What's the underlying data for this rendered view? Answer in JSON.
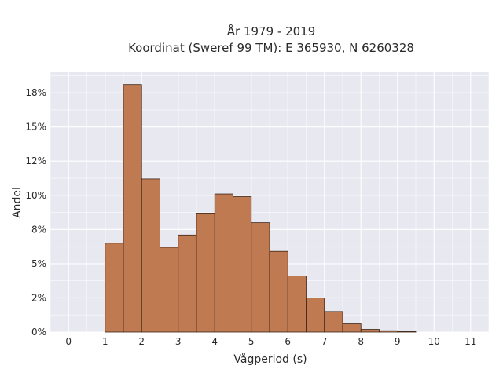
{
  "chart_data": {
    "type": "bar",
    "title_line1": "År 1979 - 2019",
    "title_line2": "Koordinat (Sweref 99 TM): E 365930, N 6260328",
    "xlabel": "Vågperiod (s)",
    "ylabel": "Andel",
    "xlim": [
      -0.5,
      11.5
    ],
    "ylim": [
      0,
      0.19
    ],
    "x_ticks": [
      "0",
      "1",
      "2",
      "3",
      "4",
      "5",
      "6",
      "7",
      "8",
      "9",
      "10",
      "11"
    ],
    "y_ticks": [
      {
        "value": 0.0,
        "label": "0%"
      },
      {
        "value": 0.025,
        "label": "2%"
      },
      {
        "value": 0.05,
        "label": "5%"
      },
      {
        "value": 0.075,
        "label": "8%"
      },
      {
        "value": 0.1,
        "label": "10%"
      },
      {
        "value": 0.125,
        "label": "12%"
      },
      {
        "value": 0.15,
        "label": "15%"
      },
      {
        "value": 0.175,
        "label": "18%"
      }
    ],
    "bin_width": 0.5,
    "bins": [
      {
        "start": 1.0,
        "value": 0.065
      },
      {
        "start": 1.5,
        "value": 0.181
      },
      {
        "start": 2.0,
        "value": 0.112
      },
      {
        "start": 2.5,
        "value": 0.062
      },
      {
        "start": 3.0,
        "value": 0.071
      },
      {
        "start": 3.5,
        "value": 0.087
      },
      {
        "start": 4.0,
        "value": 0.101
      },
      {
        "start": 4.5,
        "value": 0.099
      },
      {
        "start": 5.0,
        "value": 0.08
      },
      {
        "start": 5.5,
        "value": 0.059
      },
      {
        "start": 6.0,
        "value": 0.041
      },
      {
        "start": 6.5,
        "value": 0.025
      },
      {
        "start": 7.0,
        "value": 0.015
      },
      {
        "start": 7.5,
        "value": 0.006
      },
      {
        "start": 8.0,
        "value": 0.002
      },
      {
        "start": 8.5,
        "value": 0.001
      },
      {
        "start": 9.0,
        "value": 0.0005
      }
    ],
    "grid": true,
    "colors": {
      "bar_fill": "#c07a52",
      "bar_edge": "#3b2416",
      "plot_bg": "#e8e8f0",
      "grid": "#ffffff"
    }
  }
}
